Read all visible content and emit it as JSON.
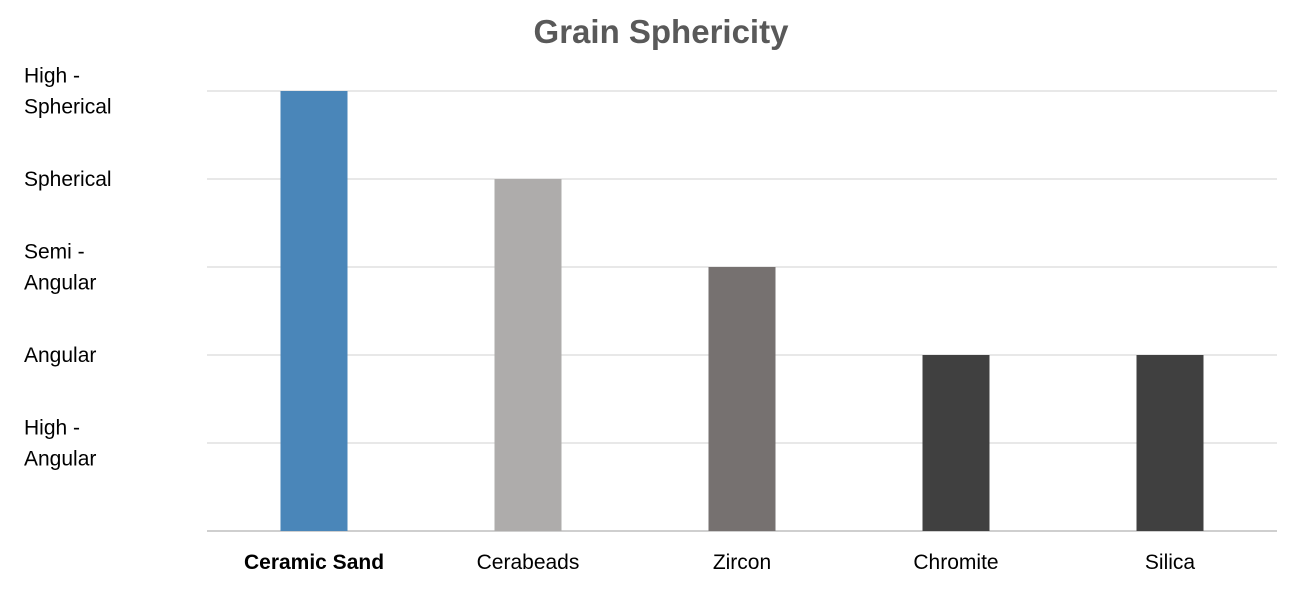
{
  "chart_data": {
    "type": "bar",
    "title": "Grain Sphericity",
    "xlabel": "",
    "ylabel": "",
    "categories": [
      "Ceramic Sand",
      "Cerabeads",
      "Zircon",
      "Chromite",
      "Silica"
    ],
    "values": [
      5,
      4,
      3,
      2,
      2
    ],
    "ylim": [
      0,
      5
    ],
    "y_tick_labels": [
      {
        "value": 1,
        "lines": [
          "High -",
          "Angular"
        ]
      },
      {
        "value": 2,
        "lines": [
          "Angular"
        ]
      },
      {
        "value": 3,
        "lines": [
          "Semi -",
          "Angular"
        ]
      },
      {
        "value": 4,
        "lines": [
          "Spherical"
        ]
      },
      {
        "value": 5,
        "lines": [
          "High -",
          "Spherical"
        ]
      }
    ],
    "bar_colors": [
      "#4a86b9",
      "#aeacab",
      "#767170",
      "#404040",
      "#404040"
    ],
    "bold_categories": [
      "Ceramic Sand"
    ],
    "grid": true,
    "legend": "none"
  }
}
